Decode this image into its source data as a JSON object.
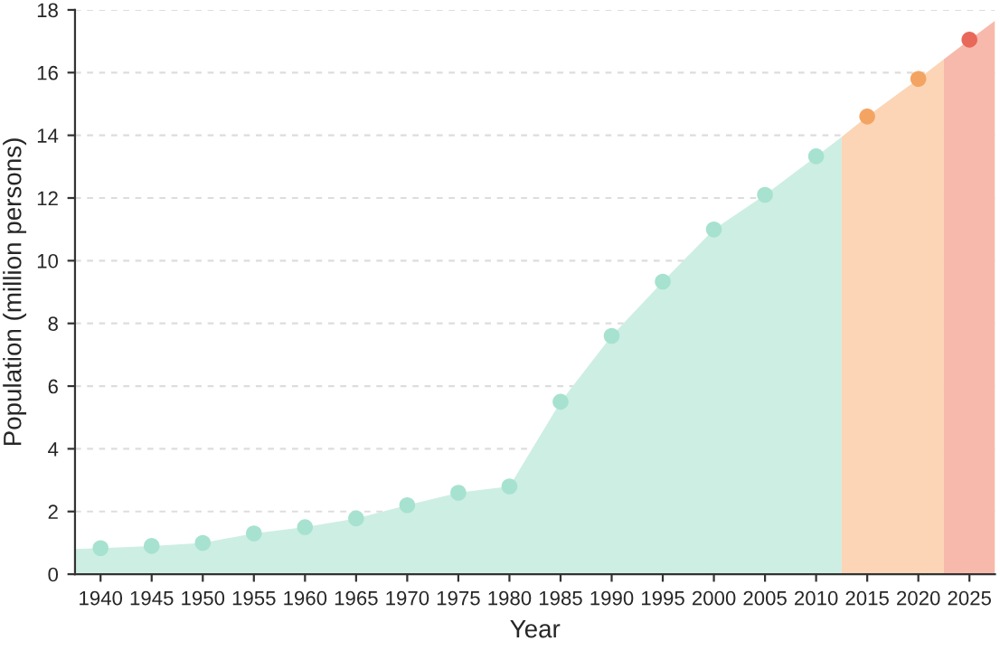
{
  "chart_data": {
    "type": "area",
    "xlabel": "Year",
    "ylabel": "Population (million persons)",
    "xlim": [
      1937.5,
      2027.5
    ],
    "ylim": [
      0,
      18
    ],
    "xticks": [
      1940,
      1945,
      1950,
      1955,
      1960,
      1965,
      1970,
      1975,
      1980,
      1985,
      1990,
      1995,
      2000,
      2005,
      2010,
      2015,
      2020,
      2025
    ],
    "yticks": [
      0,
      2,
      4,
      6,
      8,
      10,
      12,
      14,
      16,
      18
    ],
    "grid": "y",
    "legend": false,
    "series": [
      {
        "color": "#cdeee3",
        "x": [
          1937.5,
          1940,
          1945,
          1950,
          1955,
          1960,
          1965,
          1970,
          1975,
          1980,
          1985,
          1990,
          1995,
          2000,
          2005,
          2010,
          2012.5
        ],
        "values": [
          0.8,
          0.83,
          0.9,
          1.0,
          1.3,
          1.5,
          1.78,
          2.2,
          2.6,
          2.8,
          5.5,
          7.6,
          9.33,
          11.0,
          12.1,
          13.33,
          13.95
        ]
      },
      {
        "color": "#fbd5b5",
        "x": [
          2012.5,
          2015,
          2020,
          2022.5
        ],
        "values": [
          13.95,
          14.6,
          15.8,
          16.43
        ]
      },
      {
        "color": "#f7b9ab",
        "x": [
          2022.5,
          2025,
          2027.5
        ],
        "values": [
          16.43,
          17.05,
          17.65
        ]
      },
      {
        "type": "scatter",
        "color": "#a6e2cf",
        "x": [
          1940,
          1945,
          1950,
          1955,
          1960,
          1965,
          1970,
          1975,
          1980,
          1985,
          1990,
          1995,
          2000,
          2005,
          2010
        ],
        "values": [
          0.83,
          0.9,
          1.0,
          1.3,
          1.5,
          1.78,
          2.2,
          2.6,
          2.8,
          5.5,
          7.6,
          9.33,
          11.0,
          12.1,
          13.33
        ]
      },
      {
        "type": "scatter",
        "color": "#f4a462",
        "x": [
          2015,
          2020
        ],
        "values": [
          14.6,
          15.8
        ]
      },
      {
        "type": "scatter",
        "color": "#e8685a",
        "x": [
          2025
        ],
        "values": [
          17.05
        ]
      }
    ]
  }
}
